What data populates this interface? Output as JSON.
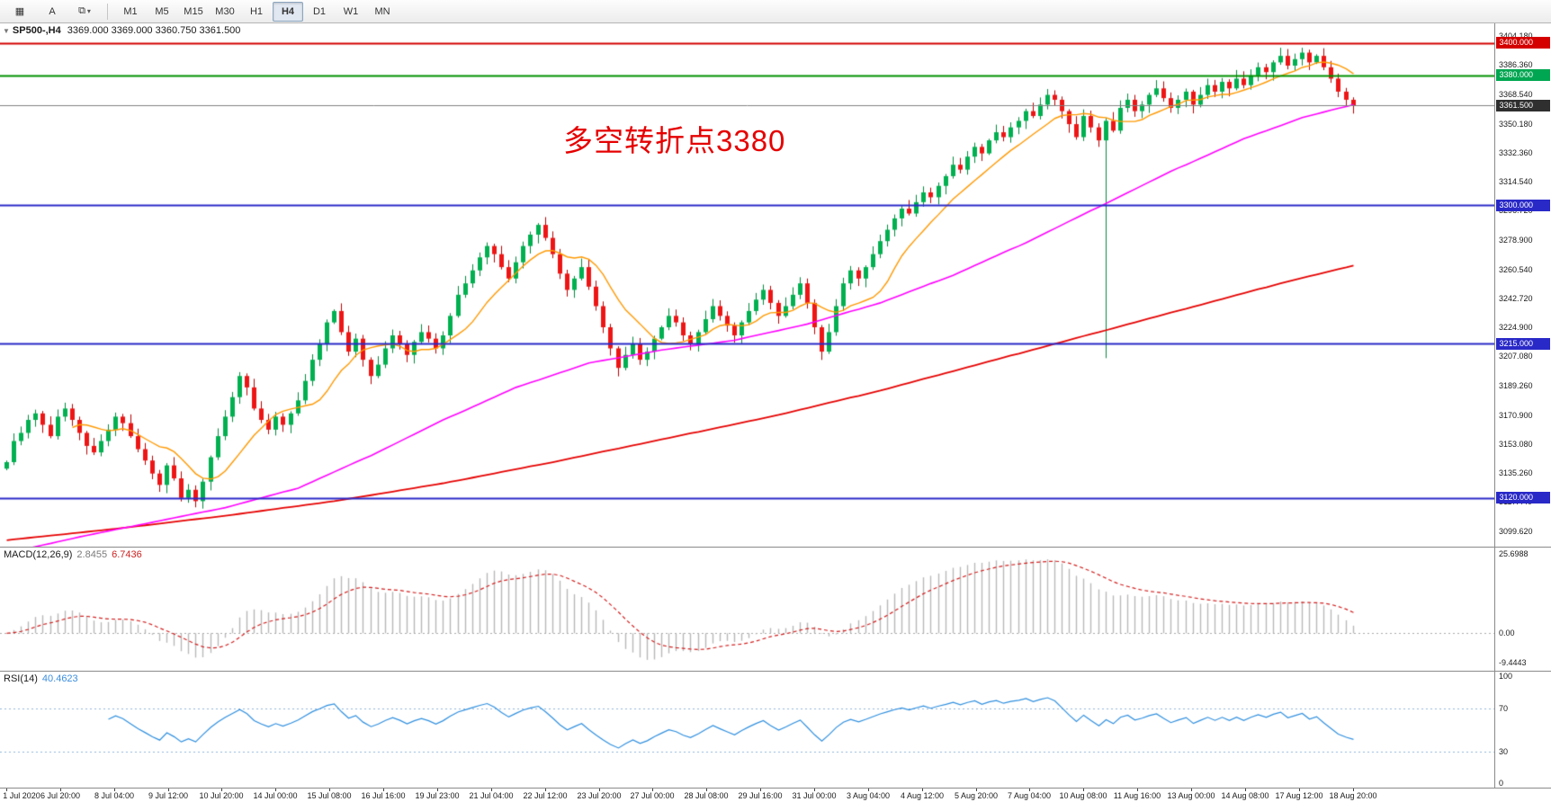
{
  "toolbar": {
    "icons": [
      {
        "name": "chart-window-icon",
        "glyph": "▦"
      },
      {
        "name": "text-annotation-icon",
        "glyph": "A"
      },
      {
        "name": "arrange-windows-icon",
        "glyph": "⧉",
        "caret": "▾"
      }
    ],
    "timeframes": [
      {
        "label": "M1",
        "active": false
      },
      {
        "label": "M5",
        "active": false
      },
      {
        "label": "M15",
        "active": false
      },
      {
        "label": "M30",
        "active": false
      },
      {
        "label": "H1",
        "active": false
      },
      {
        "label": "H4",
        "active": true
      },
      {
        "label": "D1",
        "active": false
      },
      {
        "label": "W1",
        "active": false
      },
      {
        "label": "MN",
        "active": false
      }
    ]
  },
  "main": {
    "collapse_arrow": "▼",
    "title_symbol": "SP500-,H4",
    "title_ohlc": "3369.000 3369.000 3360.750 3361.500",
    "annotation": "多空转折点3380"
  },
  "colors": {
    "candle_up": "#00b050",
    "candle_up_border": "#008a3c",
    "candle_down": "#ee1515",
    "candle_down_border": "#b80000",
    "ma_fast": "#ff9900",
    "ma_mid": "#ff00ff",
    "ma_slow": "#e60000",
    "macd_hist": "#b8b8b8",
    "macd_signal": "#d42020",
    "rsi_line": "#2f8fdf",
    "rsi_level": "#8fb4d8",
    "annotation": "#e60000"
  },
  "chart_data": {
    "type": "candlestick",
    "symbol": "SP500-",
    "timeframe": "H4",
    "ohlc_display": {
      "open": "3369.000",
      "high": "3369.000",
      "low": "3360.750",
      "close": "3361.500"
    },
    "y_range": [
      3090,
      3412
    ],
    "first_open": 3138,
    "closes": [
      3142,
      3155,
      3160,
      3168,
      3172,
      3165,
      3158,
      3170,
      3175,
      3168,
      3160,
      3152,
      3148,
      3155,
      3162,
      3170,
      3166,
      3158,
      3150,
      3143,
      3135,
      3128,
      3140,
      3132,
      3120,
      3125,
      3118,
      3130,
      3145,
      3158,
      3170,
      3182,
      3195,
      3188,
      3175,
      3168,
      3162,
      3170,
      3165,
      3172,
      3180,
      3192,
      3205,
      3215,
      3228,
      3235,
      3222,
      3210,
      3218,
      3205,
      3195,
      3202,
      3212,
      3220,
      3215,
      3208,
      3216,
      3222,
      3218,
      3212,
      3220,
      3232,
      3245,
      3252,
      3260,
      3268,
      3275,
      3270,
      3262,
      3255,
      3265,
      3275,
      3282,
      3288,
      3280,
      3270,
      3258,
      3248,
      3255,
      3262,
      3250,
      3238,
      3225,
      3212,
      3200,
      3208,
      3215,
      3205,
      3210,
      3218,
      3225,
      3232,
      3228,
      3220,
      3215,
      3222,
      3230,
      3238,
      3232,
      3226,
      3220,
      3228,
      3235,
      3242,
      3248,
      3240,
      3232,
      3238,
      3245,
      3252,
      3240,
      3225,
      3210,
      3222,
      3238,
      3252,
      3260,
      3255,
      3262,
      3270,
      3278,
      3285,
      3292,
      3298,
      3295,
      3302,
      3308,
      3305,
      3312,
      3318,
      3325,
      3322,
      3330,
      3336,
      3332,
      3340,
      3345,
      3342,
      3348,
      3352,
      3358,
      3355,
      3362,
      3368,
      3365,
      3358,
      3350,
      3342,
      3355,
      3348,
      3340,
      3352,
      3346,
      3360,
      3365,
      3358,
      3362,
      3368,
      3372,
      3366,
      3360,
      3365,
      3370,
      3362,
      3368,
      3374,
      3370,
      3376,
      3372,
      3378,
      3374,
      3380,
      3385,
      3382,
      3388,
      3392,
      3386,
      3390,
      3394,
      3388,
      3392,
      3385,
      3378,
      3370,
      3365,
      3361.5
    ],
    "low_overrides": {
      "151": 3206
    },
    "high_overrides": {
      "178": 3397
    },
    "ma_fast_period": 10,
    "ma_mid_points": [
      [
        0,
        3086
      ],
      [
        10,
        3096
      ],
      [
        20,
        3105
      ],
      [
        30,
        3114
      ],
      [
        40,
        3126
      ],
      [
        50,
        3146
      ],
      [
        60,
        3168
      ],
      [
        70,
        3188
      ],
      [
        80,
        3203
      ],
      [
        90,
        3211
      ],
      [
        100,
        3217
      ],
      [
        110,
        3227
      ],
      [
        120,
        3240
      ],
      [
        130,
        3257
      ],
      [
        140,
        3277
      ],
      [
        150,
        3299
      ],
      [
        160,
        3321
      ],
      [
        170,
        3341
      ],
      [
        178,
        3354
      ],
      [
        185,
        3362
      ]
    ],
    "ma_slow_points": [
      [
        0,
        3094
      ],
      [
        15,
        3101
      ],
      [
        30,
        3109
      ],
      [
        45,
        3118
      ],
      [
        60,
        3129
      ],
      [
        75,
        3142
      ],
      [
        90,
        3156
      ],
      [
        105,
        3170
      ],
      [
        120,
        3186
      ],
      [
        135,
        3204
      ],
      [
        150,
        3222
      ],
      [
        165,
        3240
      ],
      [
        175,
        3252
      ],
      [
        185,
        3263
      ]
    ],
    "hlines": [
      {
        "value": 3400,
        "label": "3400.000",
        "color": "#d40000",
        "tag_bg": "#d40000",
        "width": 2
      },
      {
        "value": 3380,
        "label": "3380.000",
        "color": "#009000",
        "tag_bg": "#00a651",
        "width": 2
      },
      {
        "value": 3361.5,
        "label": "3361.500",
        "color": "#808080",
        "tag_bg": "#2f2f2f",
        "width": 1
      },
      {
        "value": 3300,
        "label": "3300.000",
        "color": "#2929c8",
        "tag_bg": "#2929c8",
        "width": 2
      },
      {
        "value": 3215,
        "label": "3215.000",
        "color": "#2929c8",
        "tag_bg": "#2929c8",
        "width": 2
      },
      {
        "value": 3120,
        "label": "3120.000",
        "color": "#2929c8",
        "tag_bg": "#2929c8",
        "width": 2
      }
    ],
    "y_ticks": [
      "3404.180",
      "3386.360",
      "3368.540",
      "3350.180",
      "3332.360",
      "3314.540",
      "3296.720",
      "3278.900",
      "3260.540",
      "3242.720",
      "3224.900",
      "3207.080",
      "3189.260",
      "3170.900",
      "3153.080",
      "3135.260",
      "3117.440",
      "3099.620"
    ],
    "macd": {
      "label": "MACD(12,26,9)",
      "value_main": "2.8455",
      "value_signal": "6.7436",
      "axis_labels": [
        "25.6988",
        "0.00",
        "-9.4443"
      ],
      "axis_values": [
        25.6988,
        0,
        -9.4443
      ],
      "range": [
        -12.4,
        27.7
      ],
      "fast": 12,
      "slow": 26,
      "signal": 9
    },
    "rsi": {
      "label": "RSI(14)",
      "value": "40.4623",
      "period": 14,
      "axis_labels": [
        "100",
        "70",
        "30",
        "0"
      ],
      "axis_values": [
        100,
        70,
        30,
        0
      ],
      "levels": [
        70,
        30
      ]
    },
    "x_labels": [
      "1 Jul 2020",
      "6 Jul 20:00",
      "8 Jul 04:00",
      "9 Jul 12:00",
      "10 Jul 20:00",
      "14 Jul 00:00",
      "15 Jul 08:00",
      "16 Jul 16:00",
      "19 Jul 23:00",
      "21 Jul 04:00",
      "22 Jul 12:00",
      "23 Jul 20:00",
      "27 Jul 00:00",
      "28 Jul 08:00",
      "29 Jul 16:00",
      "31 Jul 00:00",
      "3 Aug 04:00",
      "4 Aug 12:00",
      "5 Aug 20:00",
      "7 Aug 04:00",
      "10 Aug 08:00",
      "11 Aug 16:00",
      "13 Aug 00:00",
      "14 Aug 08:00",
      "17 Aug 12:00",
      "18 Aug 20:00"
    ]
  }
}
